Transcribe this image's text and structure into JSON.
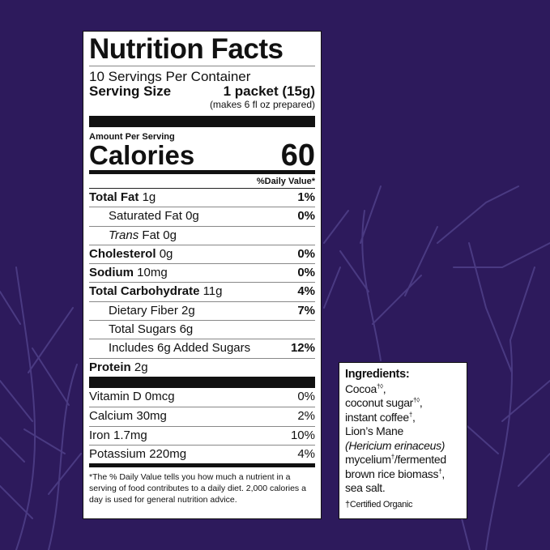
{
  "colors": {
    "background": "#2d1a5c",
    "branches": "#4a3a82",
    "label": "#ffffff"
  },
  "label": {
    "title": "Nutrition Facts",
    "servings": "10 Servings Per Container",
    "serving_size_label": "Serving Size",
    "serving_size_value": "1 packet (15g)",
    "makes": "(makes 6 fl oz prepared)",
    "amount_per_serving": "Amount Per Serving",
    "calories_label": "Calories",
    "calories_value": "60",
    "daily_value_header": "%Daily Value*",
    "nutrients": [
      {
        "name": "Total Fat",
        "amount": "1g",
        "dv": "1%",
        "bold": true
      },
      {
        "name": "Saturated Fat",
        "amount": "0g",
        "dv": "0%",
        "indent": true
      },
      {
        "name": "Trans",
        "name_suffix": "Fat",
        "amount": "0g",
        "dv": "",
        "indent": true
      },
      {
        "name": "Cholesterol",
        "amount": "0g",
        "dv": "0%",
        "bold": true
      },
      {
        "name": "Sodium",
        "amount": "10mg",
        "dv": "0%",
        "bold": true
      },
      {
        "name": "Total Carbohydrate",
        "amount": "11g",
        "dv": "4%",
        "bold": true
      },
      {
        "name": "Dietary Fiber",
        "amount": "2g",
        "dv": "7%",
        "indent": true
      },
      {
        "name": "Total Sugars",
        "amount": "6g",
        "dv": "",
        "indent": true
      },
      {
        "name": "Includes 6g Added Sugars",
        "amount": "",
        "dv": "12%",
        "indent": true
      },
      {
        "name": "Protein",
        "amount": "2g",
        "dv": "",
        "bold": true
      }
    ],
    "vitamins": [
      {
        "name": "Vitamin D",
        "amount": "0mcg",
        "dv": "0%"
      },
      {
        "name": "Calcium",
        "amount": "30mg",
        "dv": "2%"
      },
      {
        "name": "Iron",
        "amount": "1.7mg",
        "dv": "10%"
      },
      {
        "name": "Potassium",
        "amount": "220mg",
        "dv": "4%"
      }
    ],
    "footnote": "*The % Daily Value tells you how much a nutrient in a serving of food contributes to a daily diet. 2,000 calories a day is used for general nutrition advice."
  },
  "ingredients": {
    "heading": "Ingredients:",
    "items": [
      {
        "text": "Cocoa",
        "mark": "†◊",
        "sep": ","
      },
      {
        "text": "coconut sugar",
        "mark": "†◊",
        "sep": ","
      },
      {
        "text": "instant coffee",
        "mark": "†",
        "sep": ","
      },
      {
        "text": "Lion’s Mane",
        "mark": "",
        "sep": ""
      },
      {
        "text": "(Hericium erinaceus)",
        "mark": "",
        "sep": "",
        "italic": true
      },
      {
        "text": "mycelium",
        "mark": "†",
        "sep": "/fermented"
      },
      {
        "text": "brown rice biomass",
        "mark": "†",
        "sep": ","
      },
      {
        "text": "sea salt.",
        "mark": "",
        "sep": ""
      }
    ],
    "certified": "†Certified Organic"
  }
}
